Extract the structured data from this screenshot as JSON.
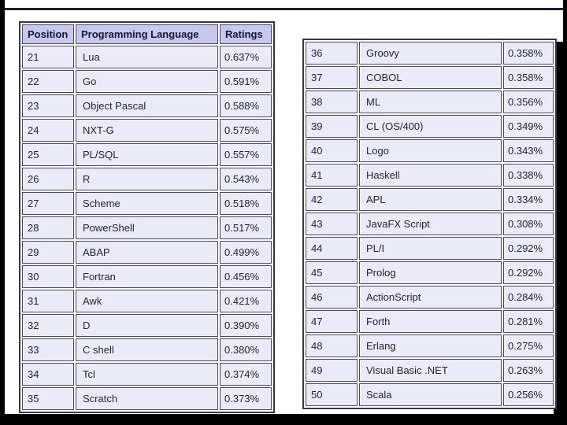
{
  "slide": {
    "background": "#ffffff",
    "frame_color": "#000000"
  },
  "colors": {
    "header_bg": "#c8c8ee",
    "cell_bg": "#eaeaf8",
    "border": "#4a4a60",
    "outer_border": "#37374b",
    "text": "#23233a"
  },
  "left_table": {
    "headers": [
      "Position",
      "Programming Language",
      "Ratings"
    ],
    "rows": [
      [
        "21",
        "Lua",
        "0.637%"
      ],
      [
        "22",
        "Go",
        "0.591%"
      ],
      [
        "23",
        "Object Pascal",
        "0.588%"
      ],
      [
        "24",
        "NXT-G",
        "0.575%"
      ],
      [
        "25",
        "PL/SQL",
        "0.557%"
      ],
      [
        "26",
        "R",
        "0.543%"
      ],
      [
        "27",
        "Scheme",
        "0.518%"
      ],
      [
        "28",
        "PowerShell",
        "0.517%"
      ],
      [
        "29",
        "ABAP",
        "0.499%"
      ],
      [
        "30",
        "Fortran",
        "0.456%"
      ],
      [
        "31",
        "Awk",
        "0.421%"
      ],
      [
        "32",
        "D",
        "0.390%"
      ],
      [
        "33",
        "C shell",
        "0.380%"
      ],
      [
        "34",
        "Tcl",
        "0.374%"
      ],
      [
        "35",
        "Scratch",
        "0.373%"
      ]
    ]
  },
  "right_table": {
    "rows": [
      [
        "36",
        "Groovy",
        "0.358%"
      ],
      [
        "37",
        "COBOL",
        "0.358%"
      ],
      [
        "38",
        "ML",
        "0.356%"
      ],
      [
        "39",
        "CL (OS/400)",
        "0.349%"
      ],
      [
        "40",
        "Logo",
        "0.343%"
      ],
      [
        "41",
        "Haskell",
        "0.338%"
      ],
      [
        "42",
        "APL",
        "0.334%"
      ],
      [
        "43",
        "JavaFX Script",
        "0.308%"
      ],
      [
        "44",
        "PL/I",
        "0.292%"
      ],
      [
        "45",
        "Prolog",
        "0.292%"
      ],
      [
        "46",
        "ActionScript",
        "0.284%"
      ],
      [
        "47",
        "Forth",
        "0.281%"
      ],
      [
        "48",
        "Erlang",
        "0.275%"
      ],
      [
        "49",
        "Visual Basic .NET",
        "0.263%"
      ],
      [
        "50",
        "Scala",
        "0.256%"
      ]
    ]
  },
  "chart_data": {
    "type": "table",
    "title": "",
    "columns": [
      "Position",
      "Programming Language",
      "Ratings"
    ],
    "rows": [
      [
        "21",
        "Lua",
        "0.637%"
      ],
      [
        "22",
        "Go",
        "0.591%"
      ],
      [
        "23",
        "Object Pascal",
        "0.588%"
      ],
      [
        "24",
        "NXT-G",
        "0.575%"
      ],
      [
        "25",
        "PL/SQL",
        "0.557%"
      ],
      [
        "26",
        "R",
        "0.543%"
      ],
      [
        "27",
        "Scheme",
        "0.518%"
      ],
      [
        "28",
        "PowerShell",
        "0.517%"
      ],
      [
        "29",
        "ABAP",
        "0.499%"
      ],
      [
        "30",
        "Fortran",
        "0.456%"
      ],
      [
        "31",
        "Awk",
        "0.421%"
      ],
      [
        "32",
        "D",
        "0.390%"
      ],
      [
        "33",
        "C shell",
        "0.380%"
      ],
      [
        "34",
        "Tcl",
        "0.374%"
      ],
      [
        "35",
        "Scratch",
        "0.373%"
      ],
      [
        "36",
        "Groovy",
        "0.358%"
      ],
      [
        "37",
        "COBOL",
        "0.358%"
      ],
      [
        "38",
        "ML",
        "0.356%"
      ],
      [
        "39",
        "CL (OS/400)",
        "0.349%"
      ],
      [
        "40",
        "Logo",
        "0.343%"
      ],
      [
        "41",
        "Haskell",
        "0.338%"
      ],
      [
        "42",
        "APL",
        "0.334%"
      ],
      [
        "43",
        "JavaFX Script",
        "0.308%"
      ],
      [
        "44",
        "PL/I",
        "0.292%"
      ],
      [
        "45",
        "Prolog",
        "0.292%"
      ],
      [
        "46",
        "ActionScript",
        "0.284%"
      ],
      [
        "47",
        "Forth",
        "0.281%"
      ],
      [
        "48",
        "Erlang",
        "0.275%"
      ],
      [
        "49",
        "Visual Basic .NET",
        "0.263%"
      ],
      [
        "50",
        "Scala",
        "0.256%"
      ]
    ],
    "layout": "two side-by-side tables: rows 21-35 left (with header), rows 36-50 right (no header)"
  }
}
